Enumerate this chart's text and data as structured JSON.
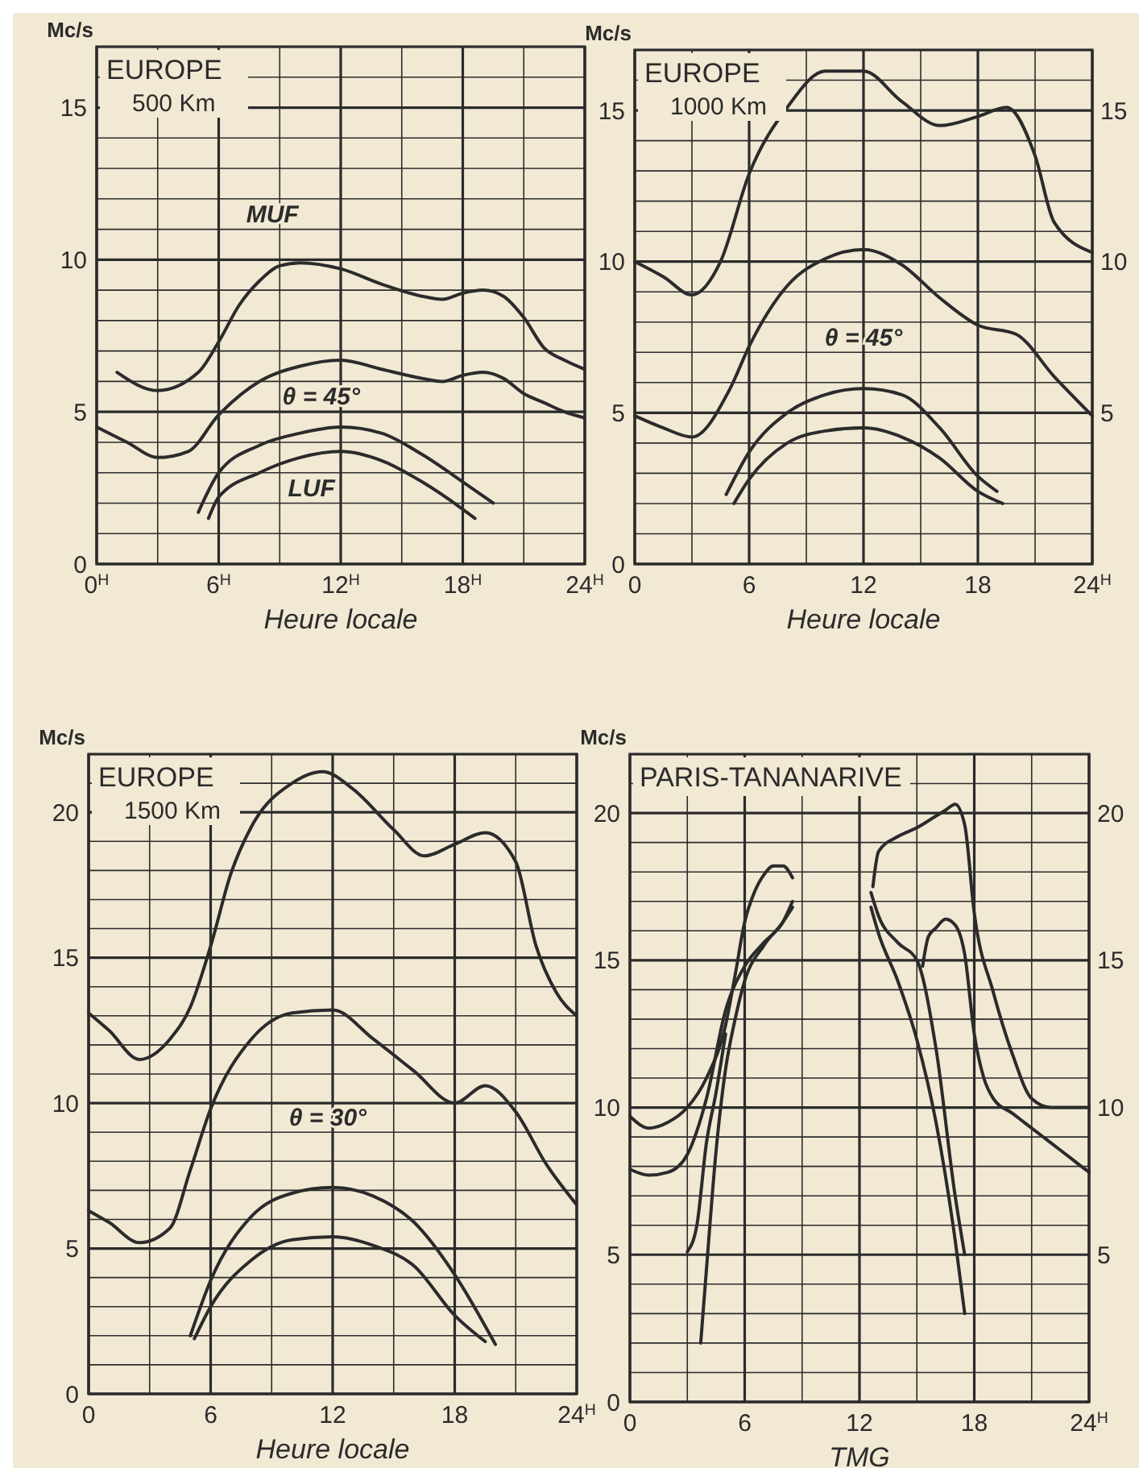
{
  "chart_data": [
    {
      "type": "line",
      "title": "EUROPE",
      "subtitle": "500 Km",
      "xlabel": "Heure locale",
      "ylabel": "Mc/s",
      "grid": true,
      "xlim": [
        0,
        24
      ],
      "ylim": [
        0,
        17
      ],
      "xticks": [
        {
          "value": 0,
          "label": "0$^{H}$"
        },
        {
          "value": 3,
          "label": null
        },
        {
          "value": 6,
          "label": "6$^{H}$"
        },
        {
          "value": 9,
          "label": null
        },
        {
          "value": 12,
          "label": "12$^{H}$"
        },
        {
          "value": 15,
          "label": null
        },
        {
          "value": 18,
          "label": "18$^{H}$"
        },
        {
          "value": 21,
          "label": null
        },
        {
          "value": 24,
          "label": "24$^{H}$"
        }
      ],
      "yticks": [
        0,
        {
          "value": 1,
          "label": null
        },
        {
          "value": 2,
          "label": null
        },
        {
          "value": 3,
          "label": null
        },
        {
          "value": 4,
          "label": null
        },
        5,
        {
          "value": 6,
          "label": null
        },
        {
          "value": 7,
          "label": null
        },
        {
          "value": 8,
          "label": null
        },
        {
          "value": 9,
          "label": null
        },
        10,
        {
          "value": 11,
          "label": null
        },
        {
          "value": 12,
          "label": null
        },
        {
          "value": 13,
          "label": null
        },
        {
          "value": 14,
          "label": null
        },
        15,
        {
          "value": 16,
          "label": null
        }
      ],
      "series": [
        {
          "color": "#2b2b2b",
          "x": [
            1,
            3,
            5,
            6,
            7,
            8,
            9,
            10,
            12,
            14,
            16,
            17,
            18,
            19,
            20,
            21,
            22,
            23,
            24
          ],
          "values": [
            6.3,
            5.7,
            6.3,
            7.3,
            8.5,
            9.3,
            9.8,
            9.9,
            9.7,
            9.2,
            8.8,
            8.7,
            8.9,
            9.0,
            8.8,
            8.1,
            7.1,
            6.7,
            6.4
          ]
        },
        {
          "color": "#2b2b2b",
          "x": [
            0,
            1.5,
            3,
            4.5,
            6,
            8,
            10,
            12,
            14,
            16,
            17,
            18,
            19,
            20,
            21,
            22,
            23,
            24
          ],
          "values": [
            4.5,
            4.0,
            3.5,
            3.7,
            4.9,
            6.0,
            6.5,
            6.7,
            6.4,
            6.1,
            6.0,
            6.2,
            6.3,
            6.1,
            5.6,
            5.3,
            5.0,
            4.8
          ]
        },
        {
          "color": "#2b2b2b",
          "x": [
            5,
            6,
            8,
            10,
            12,
            14,
            16,
            18,
            19.5
          ],
          "values": [
            1.7,
            3.0,
            3.9,
            4.3,
            4.5,
            4.3,
            3.6,
            2.7,
            2.0
          ]
        },
        {
          "color": "#2b2b2b",
          "x": [
            5.5,
            6,
            8,
            10,
            12,
            14,
            16,
            18,
            18.6
          ],
          "values": [
            1.5,
            2.2,
            3.0,
            3.5,
            3.7,
            3.4,
            2.7,
            1.8,
            1.5
          ]
        }
      ],
      "annotations": [
        "MUF",
        "θ = 45°",
        "LUF"
      ]
    },
    {
      "type": "line",
      "title": "EUROPE",
      "subtitle": "1000 Km",
      "xlabel": "Heure locale",
      "ylabel": "Mc/s",
      "grid": true,
      "xlim": [
        0,
        24
      ],
      "ylim": [
        0,
        17
      ],
      "y2lim": [
        0,
        17
      ],
      "xticks": [
        0,
        {
          "value": 3,
          "label": null
        },
        6,
        {
          "value": 9,
          "label": null
        },
        12,
        {
          "value": 15,
          "label": null
        },
        18,
        {
          "value": 21,
          "label": null
        },
        {
          "value": 24,
          "label": "24$^{H}$"
        }
      ],
      "yticks": [
        0,
        {
          "value": 1,
          "label": null
        },
        {
          "value": 2,
          "label": null
        },
        {
          "value": 3,
          "label": null
        },
        {
          "value": 4,
          "label": null
        },
        5,
        {
          "value": 6,
          "label": null
        },
        {
          "value": 7,
          "label": null
        },
        {
          "value": 8,
          "label": null
        },
        {
          "value": 9,
          "label": null
        },
        10,
        {
          "value": 11,
          "label": null
        },
        {
          "value": 12,
          "label": null
        },
        {
          "value": 13,
          "label": null
        },
        {
          "value": 14,
          "label": null
        },
        15,
        {
          "value": 16,
          "label": null
        }
      ],
      "y2ticks": [
        5,
        10,
        15
      ],
      "series": [
        {
          "color": "#2b2b2b",
          "x": [
            0,
            1.5,
            3,
            4.5,
            6,
            8,
            10,
            12,
            14,
            16,
            18,
            19.5,
            21,
            22,
            24
          ],
          "values": [
            10.0,
            9.5,
            8.9,
            10.0,
            12.9,
            15.1,
            16.3,
            16.3,
            15.3,
            14.5,
            14.8,
            15.1,
            13.5,
            11.3,
            10.3
          ]
        },
        {
          "color": "#2b2b2b",
          "x": [
            0,
            1.5,
            3,
            5,
            6,
            8,
            10,
            12,
            14,
            16,
            18,
            20,
            22,
            24
          ],
          "values": [
            4.9,
            4.5,
            4.2,
            5.8,
            7.2,
            9.2,
            10.1,
            10.4,
            9.9,
            8.8,
            7.9,
            7.6,
            6.2,
            4.9
          ]
        },
        {
          "color": "#2b2b2b",
          "x": [
            4.8,
            6,
            8,
            10,
            12,
            14,
            16,
            18,
            19
          ],
          "values": [
            2.3,
            3.7,
            5.0,
            5.6,
            5.8,
            5.6,
            4.5,
            2.9,
            2.4
          ]
        },
        {
          "color": "#2b2b2b",
          "x": [
            5.2,
            6,
            8,
            10,
            12,
            14,
            16,
            18,
            19.3
          ],
          "values": [
            2.0,
            2.8,
            4.0,
            4.4,
            4.5,
            4.2,
            3.5,
            2.4,
            2.0
          ]
        }
      ],
      "annotations": [
        "θ = 45°"
      ]
    },
    {
      "type": "line",
      "title": "EUROPE",
      "subtitle": "1500 Km",
      "xlabel": "Heure locale",
      "ylabel": "Mc/s",
      "grid": true,
      "xlim": [
        0,
        24
      ],
      "ylim": [
        0,
        22
      ],
      "xticks": [
        0,
        {
          "value": 3,
          "label": null
        },
        6,
        {
          "value": 9,
          "label": null
        },
        12,
        {
          "value": 15,
          "label": null
        },
        18,
        {
          "value": 21,
          "label": null
        },
        {
          "value": 24,
          "label": "24$^{H}$"
        }
      ],
      "yticks": [
        0,
        {
          "value": 1,
          "label": null
        },
        {
          "value": 2,
          "label": null
        },
        {
          "value": 3,
          "label": null
        },
        {
          "value": 4,
          "label": null
        },
        5,
        {
          "value": 6,
          "label": null
        },
        {
          "value": 7,
          "label": null
        },
        {
          "value": 8,
          "label": null
        },
        {
          "value": 9,
          "label": null
        },
        10,
        {
          "value": 11,
          "label": null
        },
        {
          "value": 12,
          "label": null
        },
        {
          "value": 13,
          "label": null
        },
        {
          "value": 14,
          "label": null
        },
        15,
        {
          "value": 16,
          "label": null
        },
        {
          "value": 17,
          "label": null
        },
        {
          "value": 18,
          "label": null
        },
        {
          "value": 19,
          "label": null
        },
        20,
        {
          "value": 21,
          "label": null
        }
      ],
      "series": [
        {
          "color": "#2b2b2b",
          "x": [
            0,
            1,
            2.5,
            4,
            5,
            6,
            7,
            8,
            10,
            11.5,
            13,
            15,
            16.5,
            18,
            19.5,
            21,
            22,
            23,
            24
          ],
          "values": [
            13.1,
            12.5,
            11.5,
            12.2,
            13.3,
            15.4,
            17.9,
            19.5,
            21.0,
            21.4,
            20.8,
            19.4,
            18.5,
            18.9,
            19.3,
            18.3,
            15.4,
            13.8,
            13.0
          ]
        },
        {
          "color": "#2b2b2b",
          "x": [
            0,
            1,
            2.5,
            4,
            5,
            6,
            8,
            10,
            12,
            14,
            16,
            18,
            19.5,
            21,
            22.5,
            24
          ],
          "values": [
            6.3,
            5.9,
            5.2,
            5.7,
            7.7,
            9.8,
            12.2,
            13.1,
            13.2,
            12.2,
            11.1,
            10.0,
            10.6,
            9.7,
            7.9,
            6.5
          ]
        },
        {
          "color": "#2b2b2b",
          "x": [
            5,
            6,
            8,
            10,
            12,
            14,
            16,
            18,
            20
          ],
          "values": [
            2.0,
            3.9,
            6.1,
            6.9,
            7.1,
            6.8,
            5.9,
            4.1,
            1.7
          ]
        },
        {
          "color": "#2b2b2b",
          "x": [
            5.2,
            6,
            8,
            10,
            12,
            14,
            16,
            18,
            19.5
          ],
          "values": [
            1.9,
            3.0,
            4.6,
            5.3,
            5.4,
            5.1,
            4.4,
            2.7,
            1.8
          ]
        }
      ],
      "annotations": [
        "θ = 30°"
      ]
    },
    {
      "type": "line",
      "title": "PARIS-TANANARIVE",
      "xlabel": "TMG",
      "ylabel": "Mc/s",
      "grid": true,
      "xlim": [
        0,
        24
      ],
      "ylim": [
        0,
        22
      ],
      "y2lim": [
        0,
        22
      ],
      "xticks": [
        0,
        {
          "value": 3,
          "label": null
        },
        6,
        {
          "value": 9,
          "label": null
        },
        12,
        {
          "value": 15,
          "label": null
        },
        18,
        {
          "value": 21,
          "label": null
        },
        {
          "value": 24,
          "label": "24$^{H}$"
        }
      ],
      "yticks": [
        0,
        {
          "value": 1,
          "label": null
        },
        {
          "value": 2,
          "label": null
        },
        {
          "value": 3,
          "label": null
        },
        {
          "value": 4,
          "label": null
        },
        5,
        {
          "value": 6,
          "label": null
        },
        {
          "value": 7,
          "label": null
        },
        {
          "value": 8,
          "label": null
        },
        {
          "value": 9,
          "label": null
        },
        10,
        {
          "value": 11,
          "label": null
        },
        {
          "value": 12,
          "label": null
        },
        {
          "value": 13,
          "label": null
        },
        {
          "value": 14,
          "label": null
        },
        15,
        {
          "value": 16,
          "label": null
        },
        {
          "value": 17,
          "label": null
        },
        {
          "value": 18,
          "label": null
        },
        {
          "value": 19,
          "label": null
        },
        20,
        {
          "value": 21,
          "label": null
        }
      ],
      "y2ticks": [
        5,
        10,
        15,
        20
      ],
      "series": [
        {
          "color": "#2b2b2b",
          "x": [
            0,
            1,
            2,
            3,
            4,
            5,
            5.5,
            6,
            6.5,
            7,
            7.5,
            8,
            8.5,
            10.5,
            12.7,
            13,
            14,
            15,
            16,
            16.5,
            17,
            17.5,
            18,
            19,
            20,
            21,
            22,
            23,
            24
          ],
          "values": [
            9.7,
            9.3,
            9.5,
            10.0,
            11.0,
            12.8,
            14.5,
            16.3,
            17.3,
            17.9,
            18.2,
            18.2,
            17.8,
            null,
            17.5,
            18.7,
            19.2,
            19.5,
            19.9,
            20.1,
            20.3,
            19.6,
            16.6,
            13.9,
            11.8,
            10.3,
            10.0,
            10.0,
            10.0
          ]
        },
        {
          "color": "#2b2b2b",
          "x": [
            0,
            1,
            2,
            3,
            4,
            5,
            6,
            7,
            8,
            8.5,
            10.5,
            12.6,
            13,
            14,
            15,
            16,
            17,
            17.5
          ],
          "values": [
            7.9,
            7.7,
            7.8,
            8.4,
            10.3,
            13.3,
            14.8,
            15.6,
            16.3,
            17.0,
            null,
            17.3,
            16.5,
            15.6,
            15.0,
            12.0,
            7.0,
            5.0
          ]
        },
        {
          "color": "#2b2b2b",
          "x": [
            3.7,
            4,
            4.5,
            5,
            5.5,
            6,
            7,
            8,
            8.5,
            10.5,
            12.6,
            13,
            14,
            15,
            16,
            17,
            17.5
          ],
          "values": [
            2.0,
            4.5,
            8.5,
            11.3,
            13.0,
            14.3,
            15.5,
            16.3,
            16.8,
            null,
            16.8,
            15.9,
            14.3,
            12.3,
            9.5,
            5.5,
            3.0
          ]
        },
        {
          "color": "#2b2b2b",
          "x": [
            3,
            3.5,
            4,
            4.5,
            5,
            10.5,
            15.3,
            15.6,
            16,
            16.5,
            17,
            17.5,
            18,
            18.5,
            19,
            20,
            21,
            22,
            23,
            24
          ],
          "values": [
            5.1,
            6.0,
            8.8,
            10.5,
            12.5,
            null,
            14.8,
            15.8,
            16.1,
            16.4,
            16.2,
            15.2,
            12.5,
            11.0,
            10.3,
            9.8,
            9.3,
            8.8,
            8.3,
            7.8
          ]
        }
      ]
    }
  ]
}
